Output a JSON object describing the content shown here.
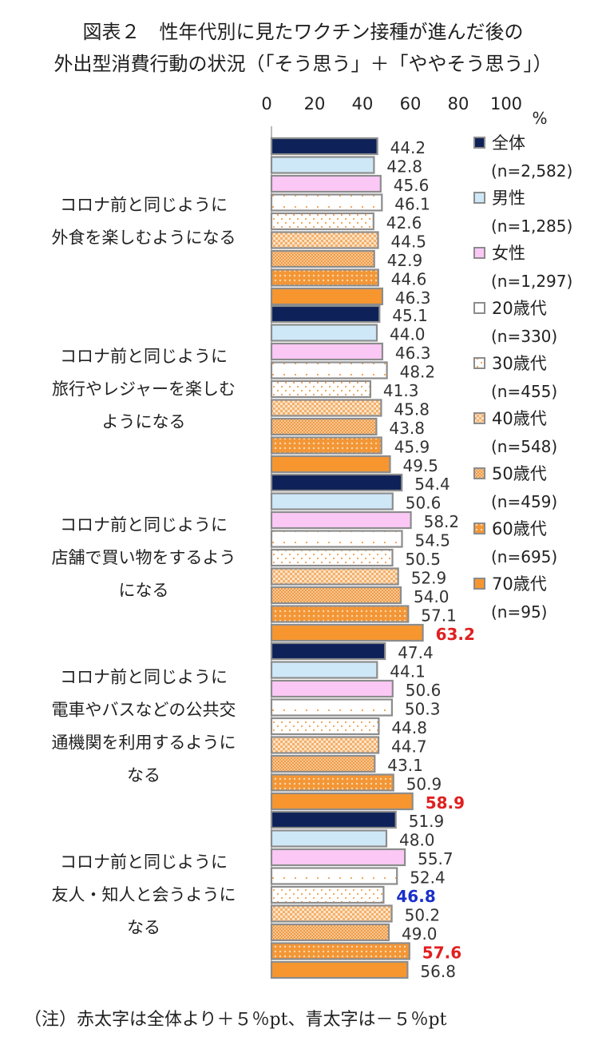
{
  "chart_data": {
    "type": "bar",
    "orientation": "horizontal",
    "title_line1": "図表２　性年代別に見たワクチン接種が進んだ後の",
    "title_line2": "外出型消費行動の状況（「そう思う」＋「ややそう思う」）",
    "unit": "%",
    "xlim": [
      0,
      100
    ],
    "x_ticks": [
      "0",
      "20",
      "40",
      "60",
      "80",
      "100"
    ],
    "categories": [
      [
        "コロナ前と同じように",
        "外食を楽しむようになる"
      ],
      [
        "コロナ前と同じように",
        "旅行やレジャーを楽しむ",
        "ようになる"
      ],
      [
        "コロナ前と同じように",
        "店舗で買い物をするよう",
        "になる"
      ],
      [
        "コロナ前と同じように",
        "電車やバスなどの公共交",
        "通機関を利用するように",
        "なる"
      ],
      [
        "コロナ前と同じように",
        "友人・知人と会うように",
        "なる"
      ]
    ],
    "series": [
      {
        "name": "全体",
        "n": "(n=2,582)",
        "color": "#0e2158",
        "pattern": "solid",
        "values": [
          44.2,
          45.1,
          54.4,
          47.4,
          51.9
        ]
      },
      {
        "name": "男性",
        "n": "(n=1,285)",
        "color": "#cfe8f8",
        "pattern": "solid",
        "values": [
          42.8,
          44.0,
          50.6,
          44.1,
          48.0
        ]
      },
      {
        "name": "女性",
        "n": "(n=1,297)",
        "color": "#fbc8f6",
        "pattern": "solid",
        "values": [
          45.6,
          46.3,
          58.2,
          50.6,
          55.7
        ]
      },
      {
        "name": "20歳代",
        "n": "(n=330)",
        "color": "#ffffff",
        "pattern": "white",
        "values": [
          46.1,
          48.2,
          54.5,
          50.3,
          52.4
        ]
      },
      {
        "name": "30歳代",
        "n": "(n=455)",
        "color": "#fbe4cc",
        "pattern": "sparse",
        "values": [
          42.6,
          41.3,
          50.5,
          44.8,
          46.8
        ]
      },
      {
        "name": "40歳代",
        "n": "(n=548)",
        "color": "#f5c08a",
        "pattern": "check",
        "values": [
          44.5,
          45.8,
          52.9,
          44.7,
          50.2
        ]
      },
      {
        "name": "50歳代",
        "n": "(n=459)",
        "color": "#f2a860",
        "pattern": "dense",
        "values": [
          42.9,
          43.8,
          54.0,
          43.1,
          49.0
        ]
      },
      {
        "name": "60歳代",
        "n": "(n=695)",
        "color": "#f08a2c",
        "pattern": "dots",
        "values": [
          44.6,
          45.9,
          57.1,
          50.9,
          57.6
        ]
      },
      {
        "name": "70歳代",
        "n": "(n=95)",
        "color": "#f7962f",
        "pattern": "solid",
        "values": [
          46.3,
          49.5,
          63.2,
          58.9,
          56.8
        ]
      }
    ],
    "highlights": [
      {
        "category": 2,
        "series": 8,
        "color": "#e0201f"
      },
      {
        "category": 3,
        "series": 8,
        "color": "#e0201f"
      },
      {
        "category": 4,
        "series": 4,
        "color": "#1b2fc9"
      },
      {
        "category": 4,
        "series": 7,
        "color": "#e0201f"
      }
    ],
    "legend_position": "right",
    "grid": false
  },
  "note": "（注）赤太字は全体より＋５％pt、青太字は－５％pt"
}
